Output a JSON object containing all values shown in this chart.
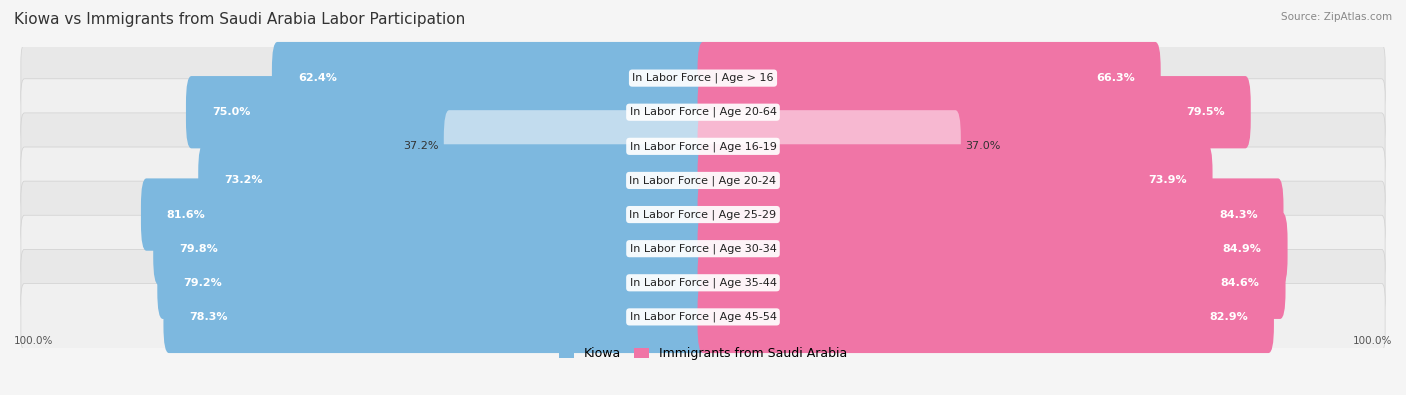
{
  "title": "Kiowa vs Immigrants from Saudi Arabia Labor Participation",
  "source": "Source: ZipAtlas.com",
  "categories": [
    "In Labor Force | Age > 16",
    "In Labor Force | Age 20-64",
    "In Labor Force | Age 16-19",
    "In Labor Force | Age 20-24",
    "In Labor Force | Age 25-29",
    "In Labor Force | Age 30-34",
    "In Labor Force | Age 35-44",
    "In Labor Force | Age 45-54"
  ],
  "kiowa_values": [
    62.4,
    75.0,
    37.2,
    73.2,
    81.6,
    79.8,
    79.2,
    78.3
  ],
  "saudi_values": [
    66.3,
    79.5,
    37.0,
    73.9,
    84.3,
    84.9,
    84.6,
    82.9
  ],
  "kiowa_color": "#7db8df",
  "kiowa_color_light": "#c2dcee",
  "saudi_color": "#f075a6",
  "saudi_color_light": "#f7b8d1",
  "row_colors": [
    "#e8e8e8",
    "#f0f0f0",
    "#e8e8e8",
    "#f0f0f0",
    "#e8e8e8",
    "#f0f0f0",
    "#e8e8e8",
    "#f0f0f0"
  ],
  "background_color": "#f5f5f5",
  "title_fontsize": 11,
  "label_fontsize": 8,
  "value_fontsize": 8,
  "legend_fontsize": 9,
  "axis_label": "100.0%",
  "max_value": 100.0
}
